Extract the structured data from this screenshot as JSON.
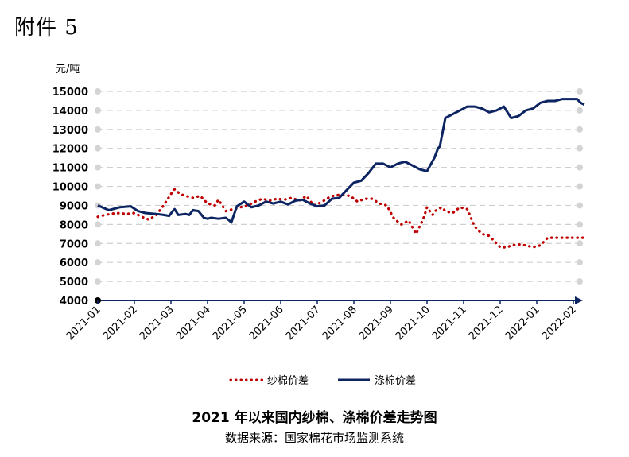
{
  "header": {
    "attachment_label": "附件 5"
  },
  "chart_data": {
    "type": "line",
    "title": "2021 年以来国内纱棉、涤棉价差走势图",
    "source": "数据来源：国家棉花市场监测系统",
    "ylabel": "元/吨",
    "ylim": [
      4000,
      15000
    ],
    "yticks": [
      4000,
      5000,
      6000,
      7000,
      8000,
      9000,
      10000,
      11000,
      12000,
      13000,
      14000,
      15000
    ],
    "x_categories": [
      "2021-01",
      "2021-02",
      "2021-03",
      "2021-04",
      "2021-05",
      "2021-06",
      "2021-07",
      "2021-08",
      "2021-09",
      "2021-10",
      "2021-11",
      "2021-12",
      "2022-01",
      "2022-02"
    ],
    "grid": true,
    "legend_position": "bottom",
    "series": [
      {
        "name": "纱棉价差",
        "style": "dotted",
        "color": "#c00000",
        "x": [
          0.0,
          0.2,
          0.5,
          0.8,
          1.0,
          1.2,
          1.4,
          1.6,
          1.8,
          2.0,
          2.1,
          2.25,
          2.4,
          2.6,
          2.8,
          3.0,
          3.2,
          3.3,
          3.5,
          3.7,
          3.9,
          4.1,
          4.3,
          4.5,
          4.7,
          4.9,
          5.1,
          5.3,
          5.5,
          5.7,
          5.9,
          6.1,
          6.3,
          6.5,
          6.7,
          6.9,
          7.1,
          7.3,
          7.5,
          7.7,
          7.9,
          8.1,
          8.3,
          8.5,
          8.7,
          8.9,
          9.0,
          9.15,
          9.22,
          9.3,
          9.4,
          9.5,
          9.7,
          9.9,
          10.1,
          10.3,
          10.5,
          10.7,
          10.9,
          11.0,
          11.2,
          11.3,
          11.5,
          11.7,
          11.9,
          12.1,
          12.3,
          12.5,
          12.7,
          12.9,
          13.1,
          13.3
        ],
        "y": [
          8400,
          8500,
          8600,
          8550,
          8600,
          8400,
          8250,
          8500,
          9000,
          9600,
          9850,
          9600,
          9500,
          9400,
          9500,
          9100,
          9000,
          9300,
          8700,
          8800,
          8900,
          9000,
          9200,
          9350,
          9250,
          9350,
          9300,
          9400,
          9250,
          9500,
          9000,
          9150,
          9400,
          9550,
          9550,
          9500,
          9200,
          9350,
          9350,
          9100,
          9000,
          8300,
          8000,
          8200,
          7500,
          8300,
          8900,
          8500,
          8700,
          8800,
          8900,
          8700,
          8600,
          8900,
          8800,
          7900,
          7500,
          7400,
          7000,
          6800,
          6800,
          6900,
          6950,
          6900,
          6800,
          6900,
          7300,
          7300,
          7300,
          7300,
          7300,
          7300
        ]
      },
      {
        "name": "涤棉价差",
        "style": "solid",
        "color": "#0c2462",
        "x": [
          0.0,
          0.3,
          0.6,
          0.9,
          1.1,
          1.3,
          1.6,
          1.8,
          1.95,
          2.05,
          2.1,
          2.2,
          2.4,
          2.5,
          2.6,
          2.75,
          2.9,
          3.0,
          3.1,
          3.3,
          3.5,
          3.6,
          3.65,
          3.8,
          4.0,
          4.2,
          4.4,
          4.6,
          4.8,
          5.0,
          5.2,
          5.4,
          5.6,
          5.8,
          6.0,
          6.2,
          6.4,
          6.6,
          6.8,
          7.0,
          7.2,
          7.4,
          7.6,
          7.8,
          8.0,
          8.2,
          8.4,
          8.6,
          8.8,
          9.0,
          9.2,
          9.3,
          9.35,
          9.5,
          9.7,
          9.9,
          10.1,
          10.3,
          10.5,
          10.7,
          10.9,
          11.1,
          11.3,
          11.5,
          11.7,
          11.9,
          12.1,
          12.3,
          12.5,
          12.7,
          12.9,
          13.1,
          13.2,
          13.3
        ],
        "y": [
          9000,
          8750,
          8900,
          8950,
          8700,
          8600,
          8550,
          8500,
          8450,
          8700,
          8800,
          8500,
          8550,
          8500,
          8750,
          8700,
          8350,
          8300,
          8350,
          8300,
          8350,
          8200,
          8100,
          8950,
          9200,
          8900,
          9000,
          9200,
          9100,
          9200,
          9050,
          9250,
          9300,
          9100,
          8950,
          9000,
          9350,
          9400,
          9800,
          10200,
          10300,
          10700,
          11200,
          11200,
          11000,
          11200,
          11300,
          11100,
          10900,
          10800,
          11500,
          12000,
          12100,
          13600,
          13800,
          14000,
          14200,
          14200,
          14100,
          13900,
          14000,
          14200,
          13600,
          13700,
          14000,
          14100,
          14400,
          14500,
          14500,
          14600,
          14600,
          14600,
          14400,
          14300
        ]
      }
    ]
  }
}
